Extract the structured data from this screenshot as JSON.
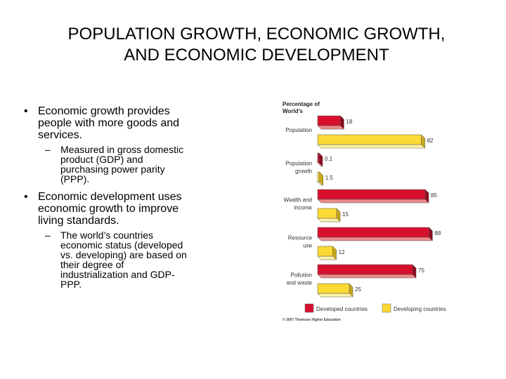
{
  "slide": {
    "title": "POPULATION GROWTH, ECONOMIC GROWTH, AND ECONOMIC DEVELOPMENT",
    "bullets": [
      {
        "text": "Economic growth provides people with more goods and services.",
        "sub": [
          "Measured in gross domestic product (GDP) and purchasing power parity (PPP)."
        ]
      },
      {
        "text": "Economic development uses economic growth to improve living standards.",
        "sub": [
          "The world’s countries economic status (developed vs. developing) are based on their degree of industrialization and GDP-PPP."
        ]
      }
    ]
  },
  "chart_data": {
    "type": "bar",
    "orientation": "horizontal",
    "title": "Percentage of World's",
    "categories": [
      "Population",
      "Population growth",
      "Wealth and income",
      "Resource use",
      "Pollution and waste"
    ],
    "series": [
      {
        "name": "Developed countries",
        "color": "#d7102e",
        "values": [
          18,
          0.1,
          85,
          88,
          75
        ],
        "labels": [
          "18",
          "0.1",
          "85",
          "88",
          "75"
        ]
      },
      {
        "name": "Developing countries",
        "color": "#fcd935",
        "values": [
          82,
          1.5,
          15,
          12,
          25
        ],
        "labels": [
          "82",
          "1.5",
          "15",
          "12",
          "25"
        ]
      }
    ],
    "xlim": [
      0,
      100
    ],
    "legend": "bottom",
    "grid": false,
    "credit": "© 2007 Thomson Higher Education"
  }
}
